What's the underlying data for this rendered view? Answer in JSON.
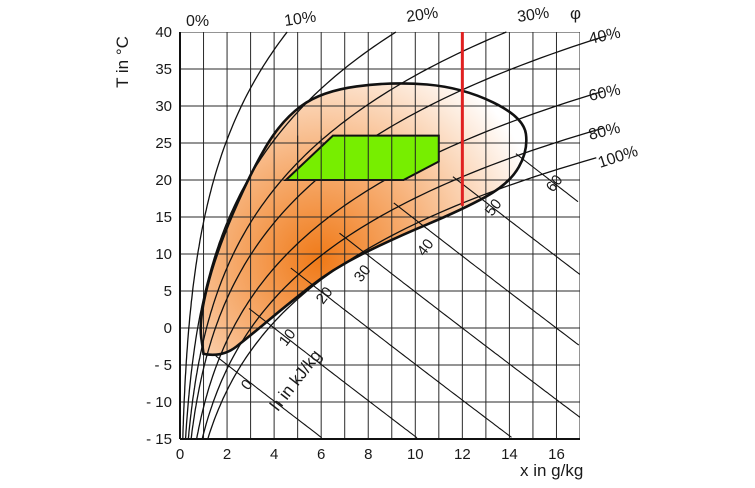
{
  "chart_data": {
    "type": "psychrometric",
    "xlabel": "x in g/kg",
    "ylabel": "T in °C",
    "phi_symbol": "φ",
    "h_axis_label": "h in kJ/kg",
    "xlim": [
      0,
      17
    ],
    "ylim": [
      -15,
      40
    ],
    "x_ticks": [
      0,
      2,
      4,
      6,
      8,
      10,
      12,
      14,
      16
    ],
    "x_tick_labels": [
      "0",
      "2",
      "4",
      "6",
      "8",
      "10",
      "12",
      "14",
      "16"
    ],
    "highlight_x_tick": "12",
    "y_ticks": [
      40,
      35,
      30,
      25,
      20,
      15,
      10,
      5,
      0,
      -5,
      -10,
      -15
    ],
    "y_tick_labels": [
      "40",
      "35",
      "30",
      "25",
      "20",
      "15",
      "10",
      "0",
      "- 5",
      "- 10",
      "- 15"
    ],
    "y_tick_labels_full": [
      "40",
      "35",
      "30",
      "25",
      "20",
      "15",
      "10",
      "5",
      "0",
      "- 5",
      "- 10",
      "- 15"
    ],
    "x_grid": [
      1,
      2,
      3,
      4,
      5,
      6,
      7,
      8,
      9,
      10,
      11,
      12,
      13,
      14,
      15,
      16,
      17
    ],
    "y_grid": [
      -15,
      -10,
      -5,
      0,
      5,
      10,
      15,
      20,
      25,
      30,
      35,
      40
    ],
    "rh_top_labels": [
      "0%",
      "10%",
      "20%",
      "30%"
    ],
    "rh_right_labels": [
      "40%",
      "60%",
      "80%",
      "100%"
    ],
    "rh_values": [
      10,
      20,
      30,
      40,
      60,
      80,
      100
    ],
    "h_labels": [
      "0",
      "10",
      "20",
      "30",
      "40",
      "50",
      "60"
    ],
    "h_values": [
      0,
      10,
      20,
      30,
      40,
      50,
      60,
      70
    ],
    "comfort_zone": {
      "color": "#77ee00",
      "points": [
        [
          4.5,
          20
        ],
        [
          6.5,
          26
        ],
        [
          11,
          26
        ],
        [
          11,
          22.5
        ],
        [
          9.5,
          20
        ]
      ]
    },
    "envelope": {
      "outline": [
        [
          1.0,
          -3.5
        ],
        [
          1.8,
          -4
        ],
        [
          3.0,
          -1
        ],
        [
          4.5,
          3
        ],
        [
          6.5,
          8
        ],
        [
          9.0,
          12
        ],
        [
          12.0,
          16
        ],
        [
          14.0,
          19.5
        ],
        [
          14.8,
          24
        ],
        [
          14.6,
          28.5
        ],
        [
          12.0,
          32.5
        ],
        [
          9.0,
          33.3
        ],
        [
          6.0,
          32
        ],
        [
          4.3,
          28
        ],
        [
          3.0,
          21
        ],
        [
          1.5,
          10
        ],
        [
          0.8,
          1
        ],
        [
          1.0,
          -3.5
        ]
      ],
      "colors": [
        "#f07a18",
        "#ffffff"
      ]
    },
    "marker_line": {
      "x": 12,
      "y_from": 16.5,
      "y_to": 40,
      "color": "#e02020"
    }
  }
}
